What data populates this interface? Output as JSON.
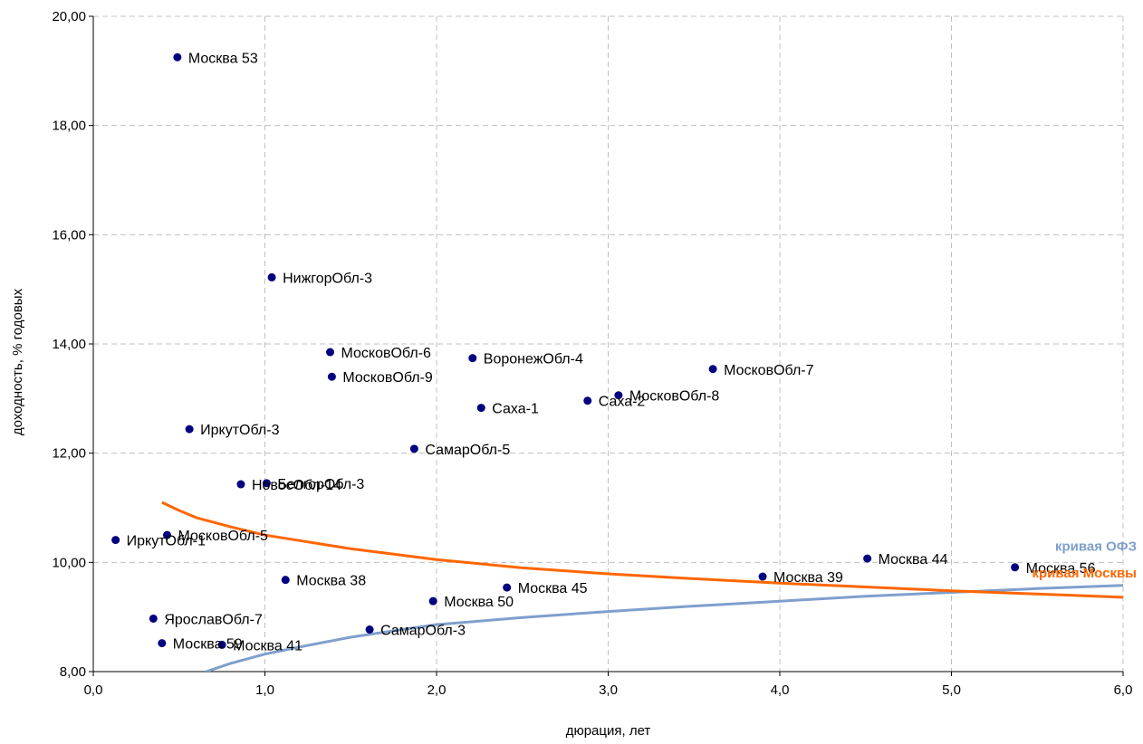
{
  "chart_data": {
    "type": "scatter",
    "title": "",
    "xlabel": "дюрация, лет",
    "ylabel": "доходность, % годовых",
    "xlim": [
      0,
      6
    ],
    "ylim": [
      8,
      20
    ],
    "grid": true,
    "x_ticks": [
      "0,0",
      "1,0",
      "2,0",
      "3,0",
      "4,0",
      "5,0",
      "6,0"
    ],
    "y_ticks": [
      "8,00",
      "10,00",
      "12,00",
      "14,00",
      "16,00",
      "18,00",
      "20,00"
    ],
    "point_color": "#000080",
    "points": [
      {
        "label": "Москва 53",
        "x": 0.49,
        "y": 19.25
      },
      {
        "label": "НижгорОбл-3",
        "x": 1.04,
        "y": 15.22
      },
      {
        "label": "МосковОбл-6",
        "x": 1.38,
        "y": 13.85
      },
      {
        "label": "МосковОбл-9",
        "x": 1.39,
        "y": 13.4
      },
      {
        "label": "ВоронежОбл-4",
        "x": 2.21,
        "y": 13.74
      },
      {
        "label": "МосковОбл-7",
        "x": 3.61,
        "y": 13.54
      },
      {
        "label": "МосковОбл-8",
        "x": 3.06,
        "y": 13.06
      },
      {
        "label": "Саха-2",
        "x": 2.88,
        "y": 12.96
      },
      {
        "label": "Саха-1",
        "x": 2.26,
        "y": 12.83
      },
      {
        "label": "ИркутОбл-3",
        "x": 0.56,
        "y": 12.44
      },
      {
        "label": "СамарОбл-5",
        "x": 1.87,
        "y": 12.08
      },
      {
        "label": "НовосОбл-14",
        "x": 0.86,
        "y": 11.43
      },
      {
        "label": "БелгорОбл-3",
        "x": 1.01,
        "y": 11.45
      },
      {
        "label": "МосковОбл-5",
        "x": 0.43,
        "y": 10.5
      },
      {
        "label": "ИркутОбл-1",
        "x": 0.13,
        "y": 10.41
      },
      {
        "label": "Москва 44",
        "x": 4.51,
        "y": 10.07
      },
      {
        "label": "Москва 56",
        "x": 5.37,
        "y": 9.91
      },
      {
        "label": "Москва 39",
        "x": 3.9,
        "y": 9.74
      },
      {
        "label": "Москва 38",
        "x": 1.12,
        "y": 9.68
      },
      {
        "label": "Москва 45",
        "x": 2.41,
        "y": 9.54
      },
      {
        "label": "Москва 50",
        "x": 1.98,
        "y": 9.29
      },
      {
        "label": "ЯрославОбл-7",
        "x": 0.35,
        "y": 8.97
      },
      {
        "label": "СамарОбл-3",
        "x": 1.61,
        "y": 8.77
      },
      {
        "label": "Москва 59",
        "x": 0.4,
        "y": 8.52
      },
      {
        "label": "Москва 41",
        "x": 0.75,
        "y": 8.49
      }
    ],
    "series": [
      {
        "name": "кривая ОФЗ",
        "type": "line",
        "color": "#7f9fcc",
        "x": [
          0.65,
          0.8,
          1.0,
          1.2,
          1.5,
          1.8,
          2.0,
          2.5,
          3.0,
          3.5,
          4.0,
          4.5,
          5.0,
          5.5,
          6.0
        ],
        "y": [
          7.99,
          8.15,
          8.32,
          8.45,
          8.63,
          8.77,
          8.86,
          8.99,
          9.1,
          9.2,
          9.29,
          9.38,
          9.45,
          9.52,
          9.58
        ]
      },
      {
        "name": "кривая Москвы",
        "type": "line",
        "color": "#ff6600",
        "x": [
          0.4,
          0.5,
          0.6,
          0.8,
          1.0,
          1.2,
          1.5,
          2.0,
          2.5,
          3.0,
          3.5,
          4.0,
          4.5,
          5.0,
          5.5,
          6.0
        ],
        "y": [
          11.1,
          10.95,
          10.82,
          10.65,
          10.5,
          10.4,
          10.25,
          10.05,
          9.9,
          9.79,
          9.7,
          9.62,
          9.55,
          9.48,
          9.42,
          9.36
        ]
      }
    ]
  }
}
